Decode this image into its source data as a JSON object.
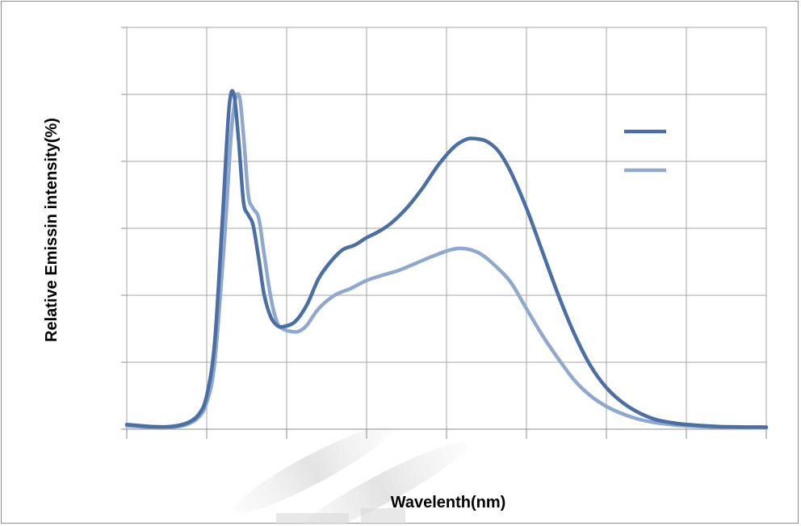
{
  "chart_data": {
    "type": "line",
    "title": "",
    "xlabel": "Wavelenth(nm)",
    "ylabel": "Relative Emissin intensity(%)",
    "x_tick_labels": [],
    "y_tick_labels": [],
    "xlim": [
      0,
      8
    ],
    "ylim": [
      0,
      6
    ],
    "grid": true,
    "legend_position": "right",
    "series": [
      {
        "color": "#4a6fa5",
        "points": [
          [
            0,
            0.07
          ],
          [
            0.3,
            0.04
          ],
          [
            0.55,
            0.04
          ],
          [
            0.75,
            0.09
          ],
          [
            0.9,
            0.22
          ],
          [
            1.0,
            0.5
          ],
          [
            1.1,
            1.3
          ],
          [
            1.2,
            3.2
          ],
          [
            1.28,
            4.8
          ],
          [
            1.34,
            5.0
          ],
          [
            1.4,
            4.3
          ],
          [
            1.46,
            3.4
          ],
          [
            1.52,
            3.2
          ],
          [
            1.58,
            3.05
          ],
          [
            1.65,
            2.55
          ],
          [
            1.72,
            2.0
          ],
          [
            1.8,
            1.68
          ],
          [
            1.88,
            1.55
          ],
          [
            1.95,
            1.53
          ],
          [
            2.1,
            1.6
          ],
          [
            2.25,
            1.85
          ],
          [
            2.4,
            2.25
          ],
          [
            2.55,
            2.5
          ],
          [
            2.7,
            2.68
          ],
          [
            2.85,
            2.75
          ],
          [
            3.0,
            2.86
          ],
          [
            3.15,
            2.95
          ],
          [
            3.3,
            3.07
          ],
          [
            3.5,
            3.3
          ],
          [
            3.7,
            3.6
          ],
          [
            3.9,
            3.95
          ],
          [
            4.1,
            4.22
          ],
          [
            4.25,
            4.33
          ],
          [
            4.35,
            4.34
          ],
          [
            4.5,
            4.3
          ],
          [
            4.65,
            4.15
          ],
          [
            4.8,
            3.85
          ],
          [
            5.0,
            3.3
          ],
          [
            5.2,
            2.65
          ],
          [
            5.4,
            2.0
          ],
          [
            5.6,
            1.42
          ],
          [
            5.8,
            0.95
          ],
          [
            6.0,
            0.62
          ],
          [
            6.2,
            0.4
          ],
          [
            6.4,
            0.25
          ],
          [
            6.6,
            0.15
          ],
          [
            6.8,
            0.1
          ],
          [
            7.0,
            0.07
          ],
          [
            7.4,
            0.04
          ],
          [
            8.0,
            0.03
          ]
        ]
      },
      {
        "color": "#8fa8d0",
        "points": [
          [
            0,
            0.05
          ],
          [
            0.3,
            0.03
          ],
          [
            0.55,
            0.03
          ],
          [
            0.75,
            0.07
          ],
          [
            0.9,
            0.18
          ],
          [
            1.0,
            0.4
          ],
          [
            1.1,
            1.0
          ],
          [
            1.22,
            2.8
          ],
          [
            1.32,
            4.6
          ],
          [
            1.4,
            5.0
          ],
          [
            1.46,
            4.4
          ],
          [
            1.52,
            3.5
          ],
          [
            1.58,
            3.3
          ],
          [
            1.65,
            3.15
          ],
          [
            1.72,
            2.6
          ],
          [
            1.8,
            1.98
          ],
          [
            1.88,
            1.6
          ],
          [
            1.95,
            1.5
          ],
          [
            2.05,
            1.46
          ],
          [
            2.15,
            1.46
          ],
          [
            2.25,
            1.55
          ],
          [
            2.4,
            1.8
          ],
          [
            2.6,
            2.0
          ],
          [
            2.8,
            2.1
          ],
          [
            3.0,
            2.22
          ],
          [
            3.2,
            2.3
          ],
          [
            3.4,
            2.37
          ],
          [
            3.6,
            2.47
          ],
          [
            3.8,
            2.57
          ],
          [
            4.0,
            2.66
          ],
          [
            4.15,
            2.7
          ],
          [
            4.3,
            2.68
          ],
          [
            4.45,
            2.6
          ],
          [
            4.6,
            2.45
          ],
          [
            4.8,
            2.2
          ],
          [
            5.0,
            1.8
          ],
          [
            5.2,
            1.4
          ],
          [
            5.4,
            1.05
          ],
          [
            5.6,
            0.73
          ],
          [
            5.8,
            0.5
          ],
          [
            6.0,
            0.34
          ],
          [
            6.2,
            0.23
          ],
          [
            6.4,
            0.15
          ],
          [
            6.6,
            0.1
          ],
          [
            6.8,
            0.07
          ],
          [
            7.0,
            0.05
          ],
          [
            7.4,
            0.03
          ],
          [
            8.0,
            0.02
          ]
        ]
      }
    ]
  }
}
